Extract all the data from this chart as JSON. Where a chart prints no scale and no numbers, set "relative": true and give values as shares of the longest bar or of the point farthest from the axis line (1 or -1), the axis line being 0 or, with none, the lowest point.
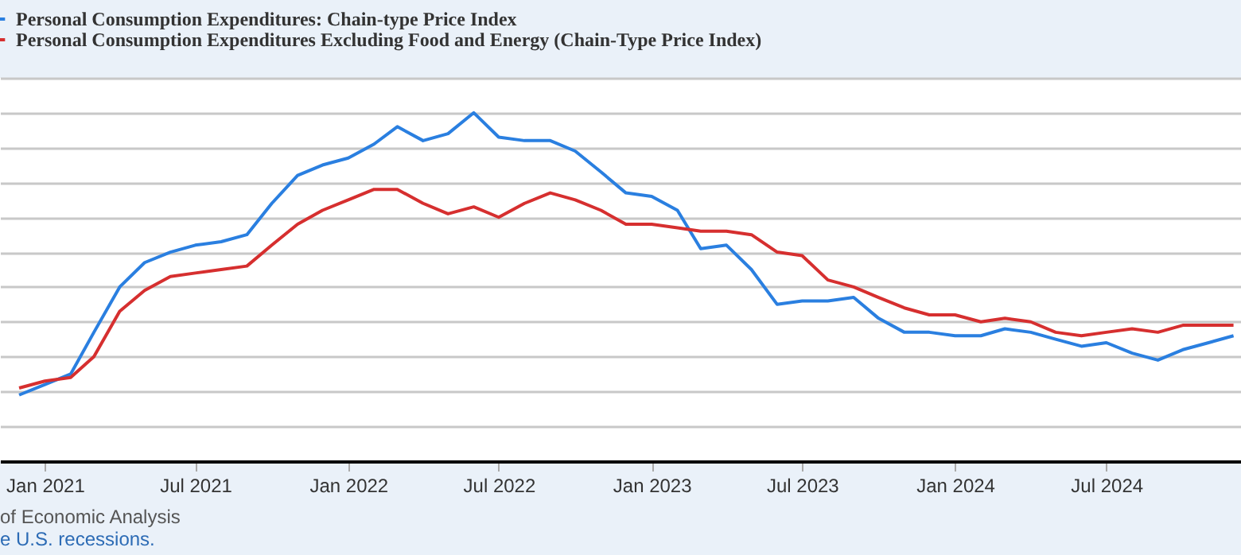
{
  "chart_data": {
    "type": "line",
    "relative": true,
    "grid": "y",
    "legend": "top left",
    "line_style": "solid",
    "marker": "none",
    "x": [
      "2020-12",
      "2021-01",
      "2021-02",
      "2021-03",
      "2021-04",
      "2021-05",
      "2021-06",
      "2021-07",
      "2021-08",
      "2021-09",
      "2021-10",
      "2021-11",
      "2021-12",
      "2022-01",
      "2022-02",
      "2022-03",
      "2022-04",
      "2022-05",
      "2022-06",
      "2022-07",
      "2022-08",
      "2022-09",
      "2022-10",
      "2022-11",
      "2022-12",
      "2023-01",
      "2023-02",
      "2023-03",
      "2023-04",
      "2023-05",
      "2023-06",
      "2023-07",
      "2023-08",
      "2023-09",
      "2023-10",
      "2023-11",
      "2023-12",
      "2024-01",
      "2024-02",
      "2024-03",
      "2024-04",
      "2024-05",
      "2024-06",
      "2024-07",
      "2024-08",
      "2024-09",
      "2024-10",
      "2024-11",
      "2024-12"
    ],
    "xlim": [
      "2020-11-08",
      "2024-12-10"
    ],
    "xticks": [
      {
        "value": "2021-01",
        "label": "Jan 2021"
      },
      {
        "value": "2021-07",
        "label": "Jul 2021"
      },
      {
        "value": "2022-01",
        "label": "Jan 2022"
      },
      {
        "value": "2022-07",
        "label": "Jul 2022"
      },
      {
        "value": "2023-01",
        "label": "Jan 2023"
      },
      {
        "value": "2023-07",
        "label": "Jul 2023"
      },
      {
        "value": "2024-01",
        "label": "Jan 2024"
      },
      {
        "value": "2024-07",
        "label": "Jul 2024"
      }
    ],
    "series": [
      {
        "name": "Personal Consumption Expenditures: Chain-type Price Index",
        "color": "#2a7fe0",
        "values": [
          0.19,
          0.22,
          0.25,
          0.37,
          0.5,
          0.57,
          0.6,
          0.62,
          0.63,
          0.65,
          0.74,
          0.82,
          0.85,
          0.87,
          0.91,
          0.96,
          0.92,
          0.94,
          1.0,
          0.93,
          0.92,
          0.92,
          0.89,
          0.83,
          0.77,
          0.76,
          0.72,
          0.61,
          0.62,
          0.55,
          0.45,
          0.46,
          0.46,
          0.47,
          0.41,
          0.37,
          0.37,
          0.36,
          0.36,
          0.38,
          0.37,
          0.35,
          0.33,
          0.34,
          0.31,
          0.29,
          0.32,
          0.34,
          0.36
        ]
      },
      {
        "name": "Personal Consumption Expenditures Excluding Food and Energy (Chain-Type Price Index)",
        "color": "#d62f2f",
        "values": [
          0.21,
          0.23,
          0.24,
          0.3,
          0.43,
          0.49,
          0.53,
          0.54,
          0.55,
          0.56,
          0.62,
          0.68,
          0.72,
          0.75,
          0.78,
          0.78,
          0.74,
          0.71,
          0.73,
          0.7,
          0.74,
          0.77,
          0.75,
          0.72,
          0.68,
          0.68,
          0.67,
          0.66,
          0.66,
          0.65,
          0.6,
          0.59,
          0.52,
          0.5,
          0.47,
          0.44,
          0.42,
          0.42,
          0.4,
          0.41,
          0.4,
          0.37,
          0.36,
          0.37,
          0.38,
          0.37,
          0.39,
          0.39,
          0.39
        ]
      }
    ],
    "annotations": [
      "of Economic Analysis",
      "e U.S. recessions."
    ]
  }
}
